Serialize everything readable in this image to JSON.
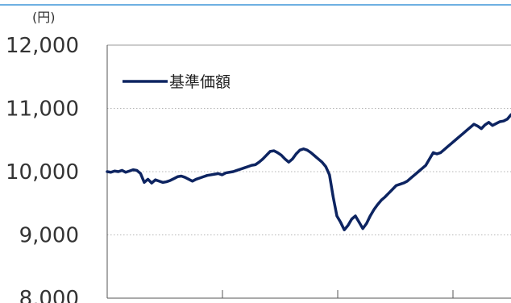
{
  "chart_data": {
    "type": "line",
    "y_unit_label": "(円)",
    "ylim": [
      8000,
      12000
    ],
    "y_ticks": [
      {
        "value": 12000,
        "label": "12,000"
      },
      {
        "value": 11000,
        "label": "11,000"
      },
      {
        "value": 10000,
        "label": "10,000"
      },
      {
        "value": 9000,
        "label": "9,000"
      },
      {
        "value": 8000,
        "label": "8,000"
      }
    ],
    "x_tick_count": 4,
    "legend_position": "top-left",
    "grid": "horizontal dotted",
    "series": [
      {
        "name": "基準価額",
        "color": "#0d2461",
        "values": [
          10000,
          9990,
          10010,
          10000,
          10020,
          9990,
          10010,
          10030,
          10020,
          9970,
          9830,
          9880,
          9820,
          9870,
          9850,
          9830,
          9840,
          9860,
          9890,
          9920,
          9930,
          9910,
          9880,
          9850,
          9880,
          9900,
          9920,
          9940,
          9950,
          9960,
          9970,
          9950,
          9980,
          9990,
          10000,
          10020,
          10040,
          10060,
          10080,
          10100,
          10110,
          10150,
          10200,
          10260,
          10320,
          10330,
          10300,
          10260,
          10200,
          10150,
          10200,
          10280,
          10340,
          10360,
          10340,
          10300,
          10250,
          10200,
          10150,
          10080,
          9950,
          9600,
          9300,
          9200,
          9080,
          9150,
          9250,
          9300,
          9200,
          9100,
          9180,
          9300,
          9400,
          9480,
          9550,
          9600,
          9660,
          9720,
          9780,
          9800,
          9820,
          9850,
          9900,
          9950,
          10000,
          10050,
          10100,
          10200,
          10300,
          10280,
          10300,
          10350,
          10400,
          10450,
          10500,
          10550,
          10600,
          10650,
          10700,
          10750,
          10720,
          10680,
          10740,
          10780,
          10730,
          10760,
          10790,
          10800,
          10830,
          10900
        ]
      }
    ]
  }
}
